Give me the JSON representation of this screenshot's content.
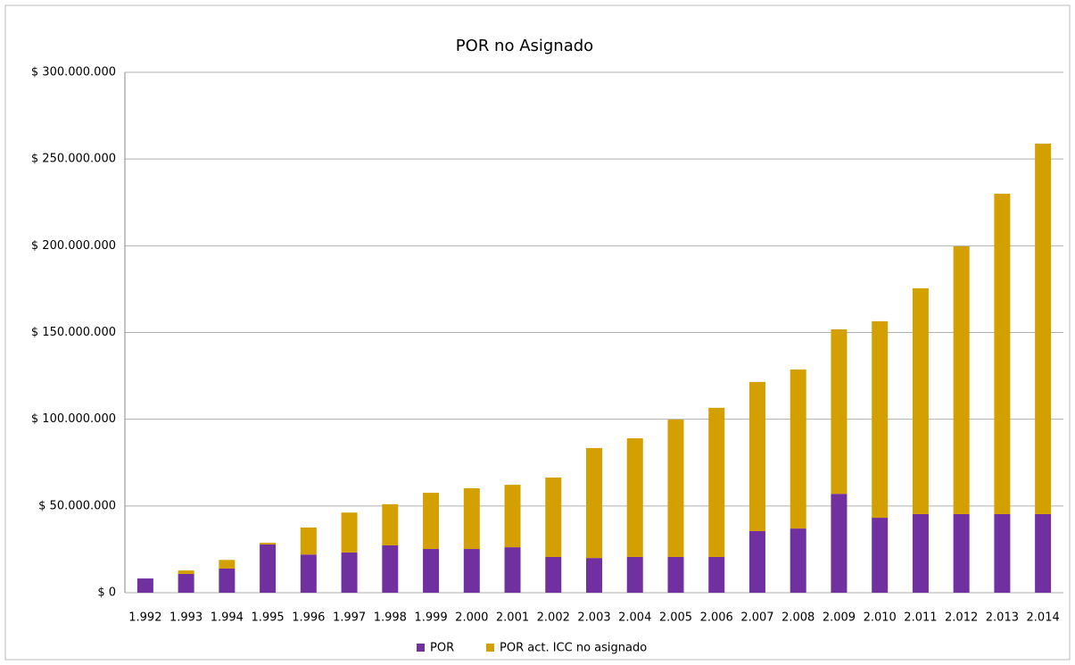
{
  "chart_data": {
    "type": "stacked_bar",
    "title": "POR no Asignado",
    "categories": [
      "1.992",
      "1.993",
      "1.994",
      "1.995",
      "1.996",
      "1.997",
      "1.998",
      "1.999",
      "2.000",
      "2.001",
      "2.002",
      "2.003",
      "2.004",
      "2.005",
      "2.006",
      "2.007",
      "2.008",
      "2.009",
      "2.010",
      "2.011",
      "2.012",
      "2.013",
      "2.014"
    ],
    "series": [
      {
        "name": "POR",
        "color": "#7030a0",
        "values": [
          8200000,
          10800000,
          13900000,
          27800000,
          22000000,
          23200000,
          27300000,
          25200000,
          25200000,
          26200000,
          20600000,
          20000000,
          20600000,
          20600000,
          20600000,
          35500000,
          37000000,
          57000000,
          43200000,
          45300000,
          45300000,
          45300000,
          45300000
        ]
      },
      {
        "name": "POR act. ICC no asignado",
        "color": "#d4a000",
        "values": [
          0,
          2000000,
          5000000,
          1000000,
          15600000,
          23000000,
          23700000,
          32400000,
          35000000,
          36000000,
          45800000,
          63400000,
          68400000,
          79200000,
          86000000,
          86000000,
          91700000,
          94800000,
          113300000,
          130200000,
          154400000,
          184700000,
          213600000
        ]
      }
    ],
    "ylim": [
      0,
      300000000
    ],
    "yticks": [
      {
        "value": 0,
        "label": "$ 0"
      },
      {
        "value": 50000000,
        "label": "$ 50.000.000"
      },
      {
        "value": 100000000,
        "label": "$ 100.000.000"
      },
      {
        "value": 150000000,
        "label": "$ 150.000.000"
      },
      {
        "value": 200000000,
        "label": "$ 200.000.000"
      },
      {
        "value": 250000000,
        "label": "$ 250.000.000"
      },
      {
        "value": 300000000,
        "label": "$ 300.000.000"
      }
    ],
    "grid": true,
    "legend": "bottom"
  }
}
